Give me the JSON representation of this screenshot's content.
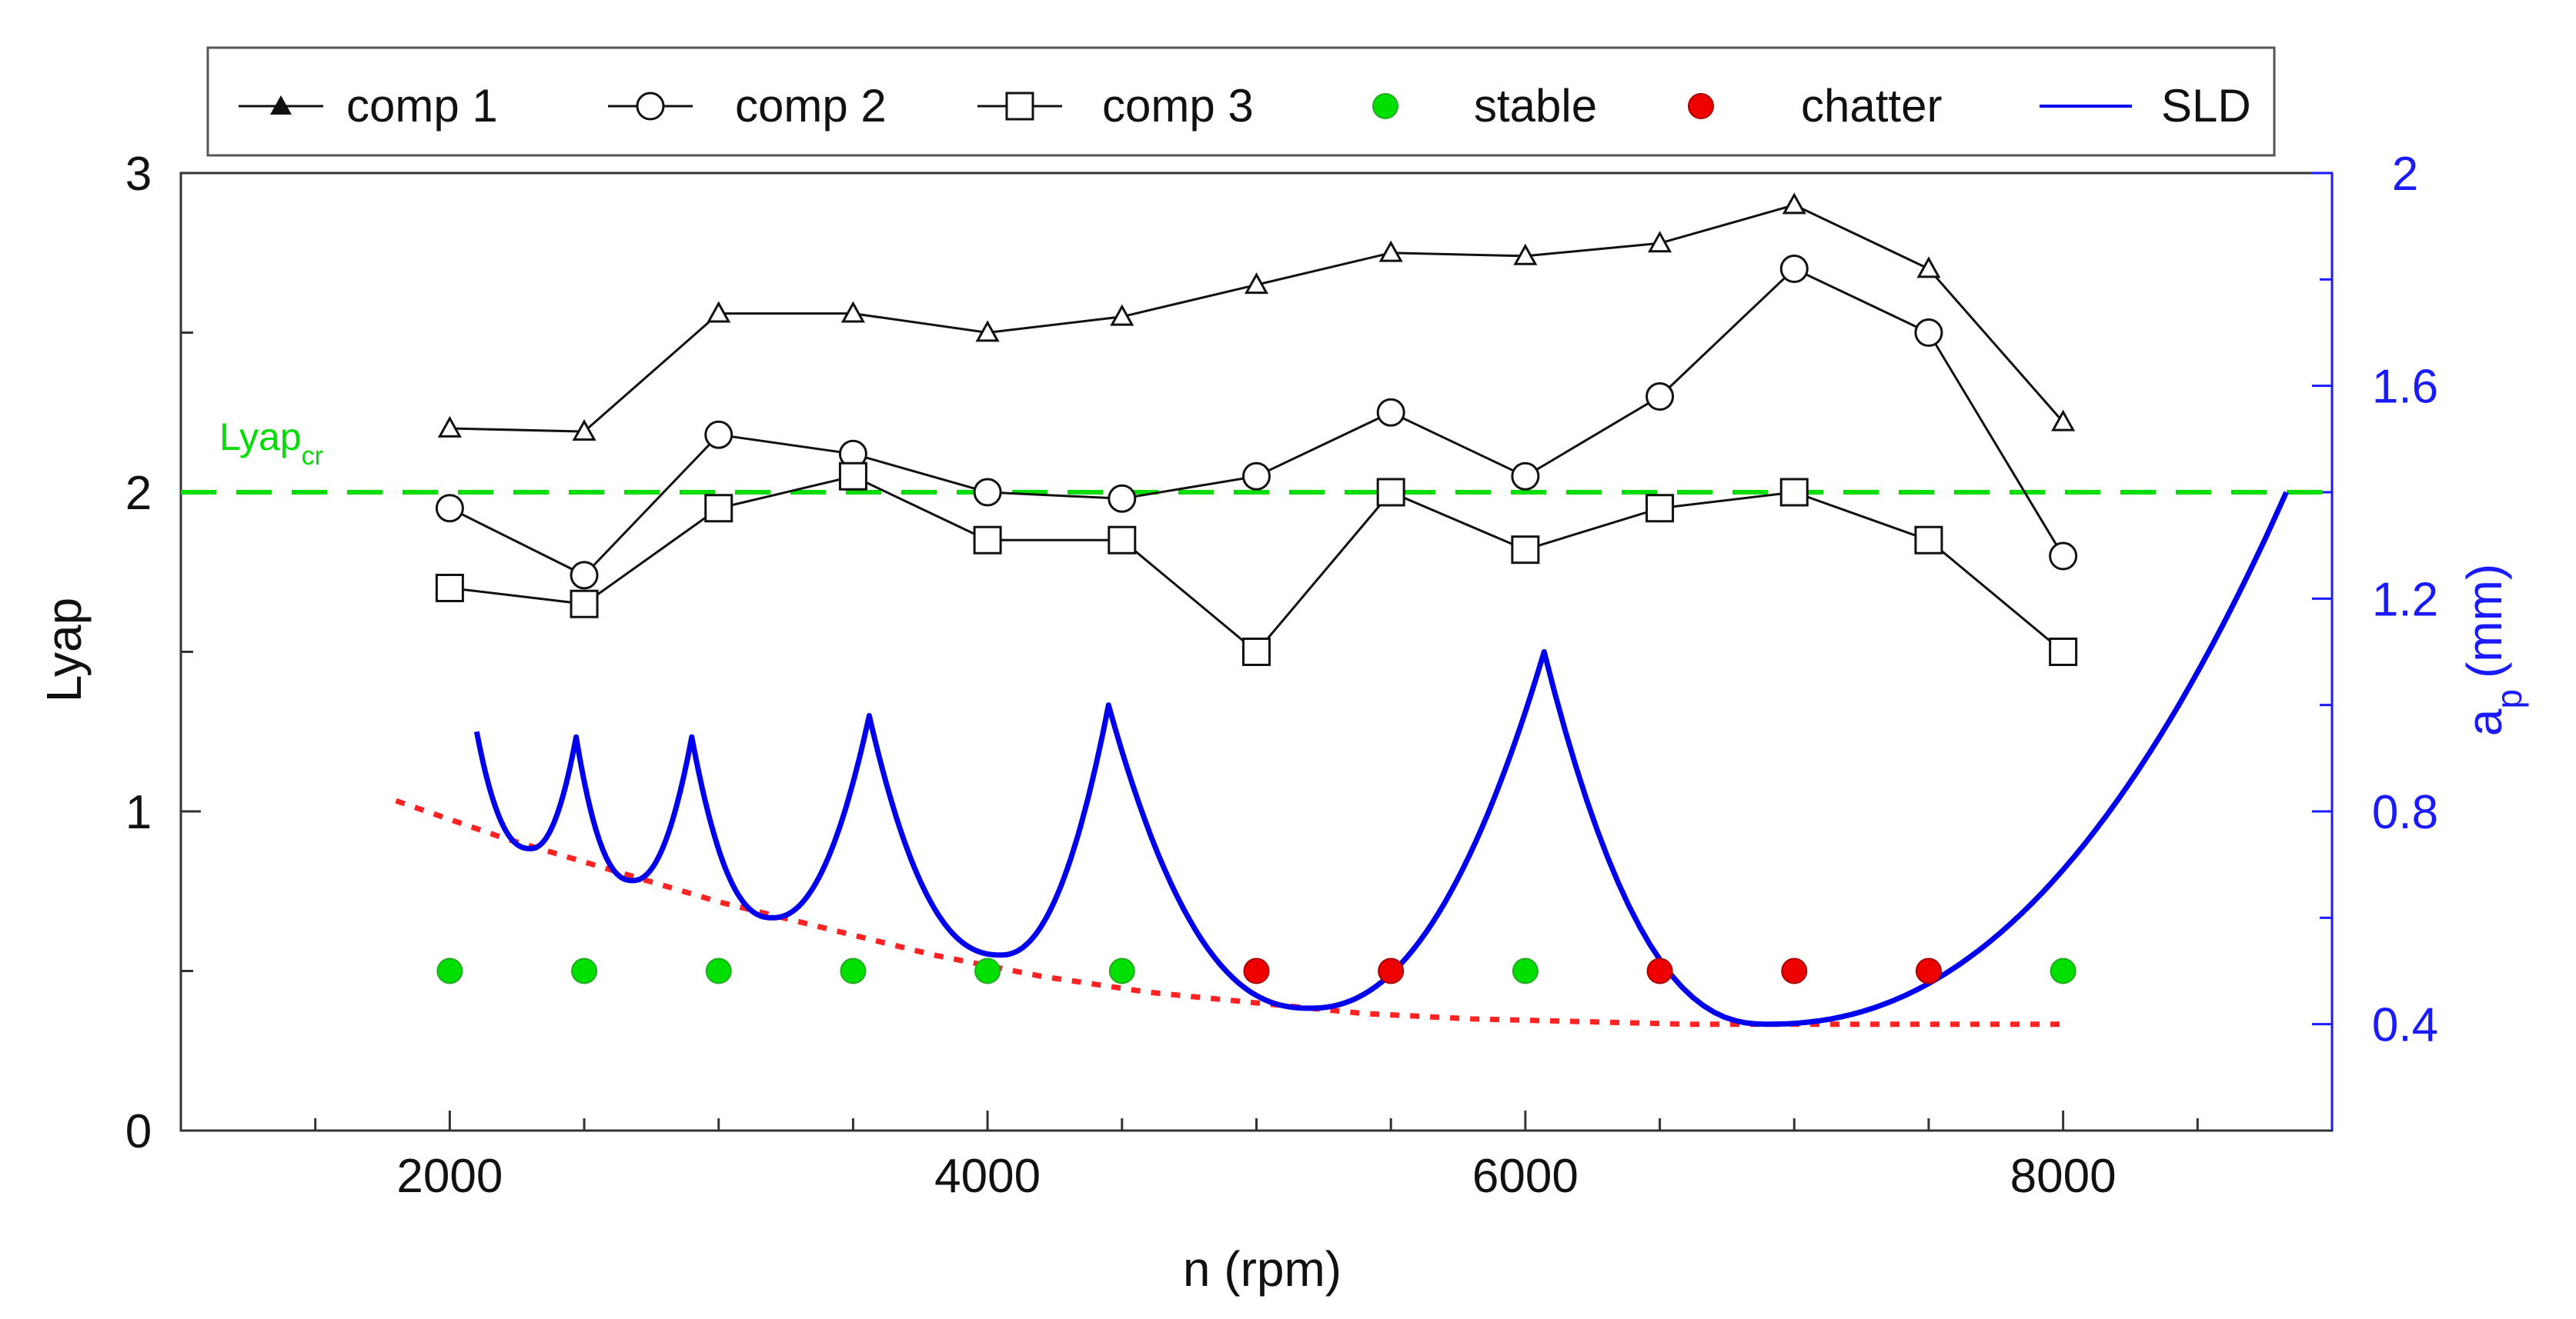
{
  "chart_data": {
    "type": "line",
    "xlabel": "n (rpm)",
    "ylabel": "Lyap",
    "y2label": "a_p (mm)",
    "y2label_main": "a",
    "y2label_sub": "p",
    "y2label_unit": "(mm)",
    "xlim": [
      1000,
      9000
    ],
    "ylim": [
      0,
      3
    ],
    "y2lim": [
      0.2,
      2.0
    ],
    "xticks": [
      2000,
      4000,
      6000,
      8000
    ],
    "xticks_minor": [
      1500,
      2500,
      3000,
      3500,
      4500,
      5000,
      5500,
      6500,
      7000,
      7500,
      8500
    ],
    "yticks": [
      0,
      1,
      2,
      3
    ],
    "yticks_minor": [
      0.5,
      1.5,
      2.5
    ],
    "y2ticks": [
      0.4,
      0.8,
      1.2,
      1.6,
      2
    ],
    "y2ticks_minor": [
      0.6,
      1.0,
      1.4,
      1.8
    ],
    "colors": {
      "comp": "#111111",
      "stable": "#00e000",
      "chatter": "#ee0000",
      "sld": "#0000ee",
      "critical": "#00dd00",
      "dotted": "#ff2222",
      "right_axis": "#1a1aff"
    },
    "legend": {
      "position": "top",
      "entries": [
        {
          "label": "comp 1",
          "marker": "triangle"
        },
        {
          "label": "comp 2",
          "marker": "circle"
        },
        {
          "label": "comp 3",
          "marker": "square"
        },
        {
          "label": "stable",
          "marker": "filled-circle-green"
        },
        {
          "label": "chatter",
          "marker": "filled-circle-red"
        },
        {
          "label": "SLD",
          "marker": "line-blue"
        }
      ]
    },
    "critical_line": {
      "main": "Lyap",
      "sub": "cr",
      "y": 2.0
    },
    "series": [
      {
        "name": "comp 1",
        "marker": "triangle",
        "x": [
          2000,
          2500,
          3000,
          3500,
          4000,
          4500,
          5000,
          5500,
          6000,
          6500,
          7000,
          7500,
          8000
        ],
        "y": [
          2.2,
          2.19,
          2.56,
          2.56,
          2.5,
          2.55,
          2.65,
          2.75,
          2.74,
          2.78,
          2.9,
          2.7,
          2.22
        ]
      },
      {
        "name": "comp 2",
        "marker": "circle",
        "x": [
          2000,
          2500,
          3000,
          3500,
          4000,
          4500,
          5000,
          5500,
          6000,
          6500,
          7000,
          7500,
          8000
        ],
        "y": [
          1.95,
          1.74,
          2.18,
          2.12,
          2.0,
          1.98,
          2.05,
          2.25,
          2.05,
          2.3,
          2.7,
          2.5,
          1.8
        ]
      },
      {
        "name": "comp 3",
        "marker": "square",
        "x": [
          2000,
          2500,
          3000,
          3500,
          4000,
          4500,
          5000,
          5500,
          6000,
          6500,
          7000,
          7500,
          8000
        ],
        "y": [
          1.7,
          1.65,
          1.95,
          2.05,
          1.85,
          1.85,
          1.5,
          2.0,
          1.82,
          1.95,
          2.0,
          1.85,
          1.5
        ]
      }
    ],
    "stability_points": {
      "y": 0.5,
      "x": [
        2000,
        2500,
        3000,
        3500,
        4000,
        4500,
        5000,
        5500,
        6000,
        6500,
        7000,
        7500,
        8000
      ],
      "status": [
        "stable",
        "stable",
        "stable",
        "stable",
        "stable",
        "stable",
        "chatter",
        "chatter",
        "stable",
        "chatter",
        "chatter",
        "chatter",
        "stable"
      ]
    },
    "sld_lobes": {
      "axis": "right",
      "lobes": [
        {
          "x_start": 2100,
          "x_min": 2300,
          "x_end": 2470,
          "y_start": 0.95,
          "y_min": 0.73,
          "y_end": 0.94
        },
        {
          "x_start": 2470,
          "x_min": 2680,
          "x_end": 2900,
          "y_start": 0.94,
          "y_min": 0.67,
          "y_end": 0.94
        },
        {
          "x_start": 2900,
          "x_min": 3200,
          "x_end": 3560,
          "y_start": 0.94,
          "y_min": 0.6,
          "y_end": 0.98
        },
        {
          "x_start": 3560,
          "x_min": 4050,
          "x_end": 4450,
          "y_start": 0.98,
          "y_min": 0.53,
          "y_end": 1.0
        },
        {
          "x_start": 4450,
          "x_min": 5200,
          "x_end": 6070,
          "y_start": 1.0,
          "y_min": 0.43,
          "y_end": 1.1
        },
        {
          "x_start": 6070,
          "x_min": 6900,
          "x_end": 8830,
          "y_start": 1.1,
          "y_min": 0.4,
          "y_end": 1.4
        }
      ]
    },
    "dotted_curve": {
      "axis": "right",
      "x": [
        1800,
        2200,
        2600,
        3000,
        3400,
        3800,
        4200,
        4600,
        5000,
        5400,
        5800,
        6200,
        6600,
        7000,
        7400,
        7800,
        8000
      ],
      "y": [
        0.82,
        0.75,
        0.69,
        0.63,
        0.58,
        0.53,
        0.49,
        0.46,
        0.44,
        0.42,
        0.41,
        0.405,
        0.4,
        0.4,
        0.4,
        0.4,
        0.4
      ]
    }
  }
}
